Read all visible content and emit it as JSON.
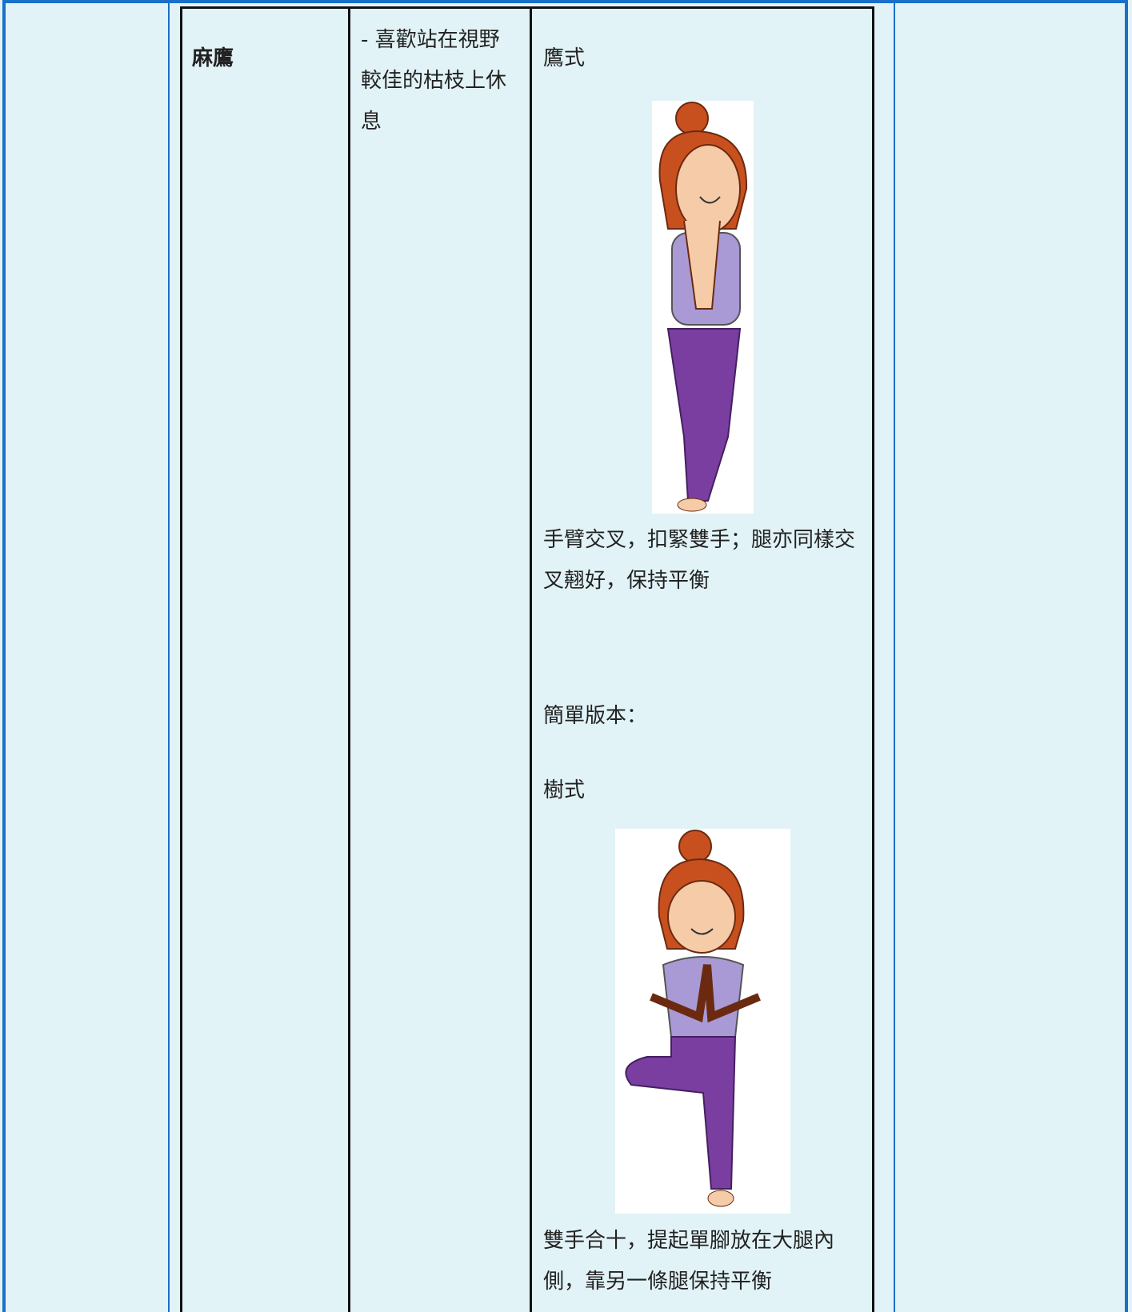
{
  "table": {
    "rows": [
      [
        "麻鷹",
        "- 喜歡站在視野較佳的枯枝上休息",
        {
          "pose_title": "鷹式",
          "pose_description": "手臂交叉，扣緊雙手；腿亦同樣交叉翹好，保持平衡",
          "simple_label": "簡單版本：",
          "simple_pose_title": "樹式",
          "simple_pose_description": "雙手合十，提起單腳放在大腿內側，靠另一條腿保持平衡"
        }
      ]
    ]
  }
}
